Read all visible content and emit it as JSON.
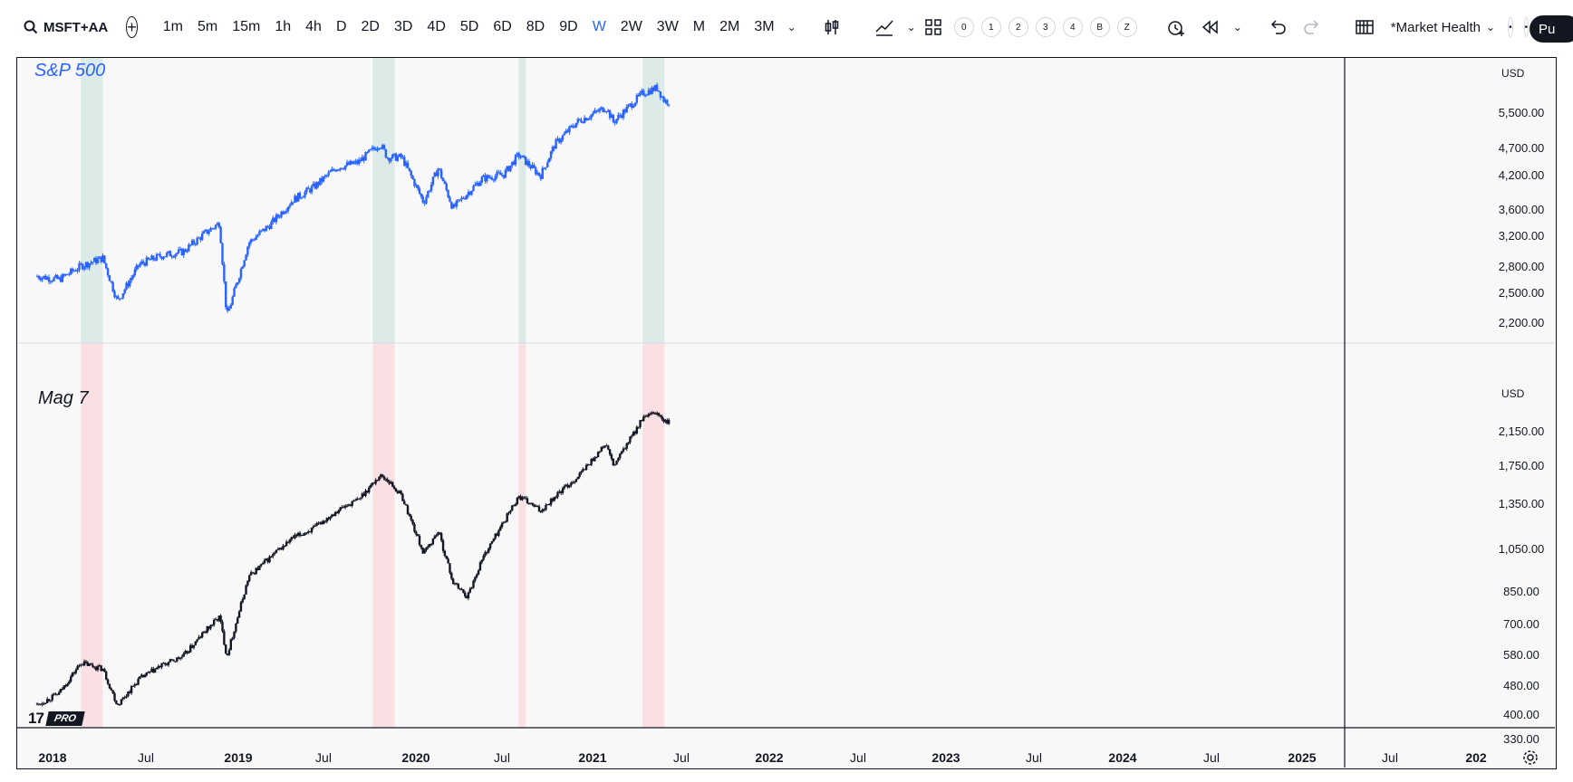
{
  "toolbar": {
    "symbol": "MSFT+AA",
    "add_symbol": "+",
    "intervals": [
      "1m",
      "5m",
      "15m",
      "1h",
      "4h",
      "D",
      "2D",
      "3D",
      "4D",
      "5D",
      "6D",
      "8D",
      "9D",
      "W",
      "2W",
      "3W",
      "M",
      "2M",
      "3M"
    ],
    "active_interval": "W",
    "replay_slots": [
      "0",
      "1",
      "2",
      "3",
      "4",
      "B",
      "Z"
    ],
    "layout_name": "*Market Health",
    "publish_label": "Pu"
  },
  "panes": {
    "top": {
      "title": "S&P 500",
      "currency": "USD",
      "color": "#2962ff",
      "y_ticks": [
        "5,500.00",
        "4,700.00",
        "4,200.00",
        "3,600.00",
        "3,200.00",
        "2,800.00",
        "2,500.00",
        "2,200.00"
      ]
    },
    "bottom": {
      "title": "Mag 7",
      "currency": "USD",
      "color": "#131722",
      "y_ticks": [
        "2,150.00",
        "1,750.00",
        "1,350.00",
        "1,050.00",
        "850.00",
        "700.00",
        "580.00",
        "480.00",
        "400.00",
        "330.00"
      ]
    }
  },
  "x_axis": [
    {
      "label": "2018",
      "major": true
    },
    {
      "label": "Jul",
      "major": false
    },
    {
      "label": "2019",
      "major": true
    },
    {
      "label": "Jul",
      "major": false
    },
    {
      "label": "2020",
      "major": true
    },
    {
      "label": "Jul",
      "major": false
    },
    {
      "label": "2021",
      "major": true
    },
    {
      "label": "Jul",
      "major": false
    },
    {
      "label": "2022",
      "major": true
    },
    {
      "label": "Jul",
      "major": false
    },
    {
      "label": "2023",
      "major": true
    },
    {
      "label": "Jul",
      "major": false
    },
    {
      "label": "2024",
      "major": true
    },
    {
      "label": "Jul",
      "major": false
    },
    {
      "label": "2025",
      "major": true
    },
    {
      "label": "Jul",
      "major": false
    },
    {
      "label": "202",
      "major": true
    }
  ],
  "highlight_bands": [
    {
      "start": "2018-07",
      "end": "2018-10"
    },
    {
      "start": "2021-11",
      "end": "2022-02"
    },
    {
      "start": "2023-07",
      "end": "2023-08"
    },
    {
      "start": "2024-12",
      "end": "2025-03"
    }
  ],
  "colors": {
    "band_top": "#dcebe8",
    "band_bottom": "#fbe0e3",
    "spx_candles": "#2962ff",
    "mag7_candles": "#131722"
  },
  "branding": {
    "logo_text": "17",
    "badge": "PRO"
  },
  "chart_data": [
    {
      "type": "line",
      "title": "S&P 500",
      "x": [
        "2018-01",
        "2018-04",
        "2018-07",
        "2018-10",
        "2018-12",
        "2019-03",
        "2019-06",
        "2019-09",
        "2019-12",
        "2020-02",
        "2020-03",
        "2020-06",
        "2020-09",
        "2020-12",
        "2021-03",
        "2021-06",
        "2021-09",
        "2021-12",
        "2022-01",
        "2022-03",
        "2022-06",
        "2022-08",
        "2022-10",
        "2022-12",
        "2023-02",
        "2023-05",
        "2023-07",
        "2023-10",
        "2023-12",
        "2024-03",
        "2024-07",
        "2024-08",
        "2024-12",
        "2025-02",
        "2025-03"
      ],
      "series": [
        {
          "name": "S&P 500",
          "values": [
            2680,
            2640,
            2800,
            2900,
            2400,
            2820,
            2930,
            2980,
            3230,
            3380,
            2240,
            3100,
            3360,
            3730,
            3960,
            4300,
            4400,
            4780,
            4500,
            4500,
            3700,
            4300,
            3600,
            3850,
            4100,
            4180,
            4550,
            4150,
            4770,
            5250,
            5600,
            5250,
            5950,
            6100,
            5750
          ]
        }
      ]
    },
    {
      "type": "line",
      "title": "Mag 7",
      "x": [
        "2018-01",
        "2018-04",
        "2018-07",
        "2018-10",
        "2018-12",
        "2019-03",
        "2019-06",
        "2019-09",
        "2019-12",
        "2020-02",
        "2020-03",
        "2020-06",
        "2020-09",
        "2020-12",
        "2021-03",
        "2021-06",
        "2021-09",
        "2021-12",
        "2022-01",
        "2022-03",
        "2022-06",
        "2022-08",
        "2022-10",
        "2022-12",
        "2023-02",
        "2023-05",
        "2023-07",
        "2023-10",
        "2023-12",
        "2024-03",
        "2024-07",
        "2024-08",
        "2024-12",
        "2025-02",
        "2025-03"
      ],
      "series": [
        {
          "name": "Mag 7",
          "values": [
            420,
            450,
            540,
            520,
            420,
            490,
            530,
            560,
            650,
            710,
            560,
            900,
            1010,
            1130,
            1200,
            1330,
            1420,
            1640,
            1600,
            1450,
            1030,
            1180,
            870,
            800,
            1000,
            1250,
            1450,
            1330,
            1450,
            1620,
            1980,
            1730,
            2300,
            2380,
            2250
          ]
        }
      ]
    }
  ]
}
